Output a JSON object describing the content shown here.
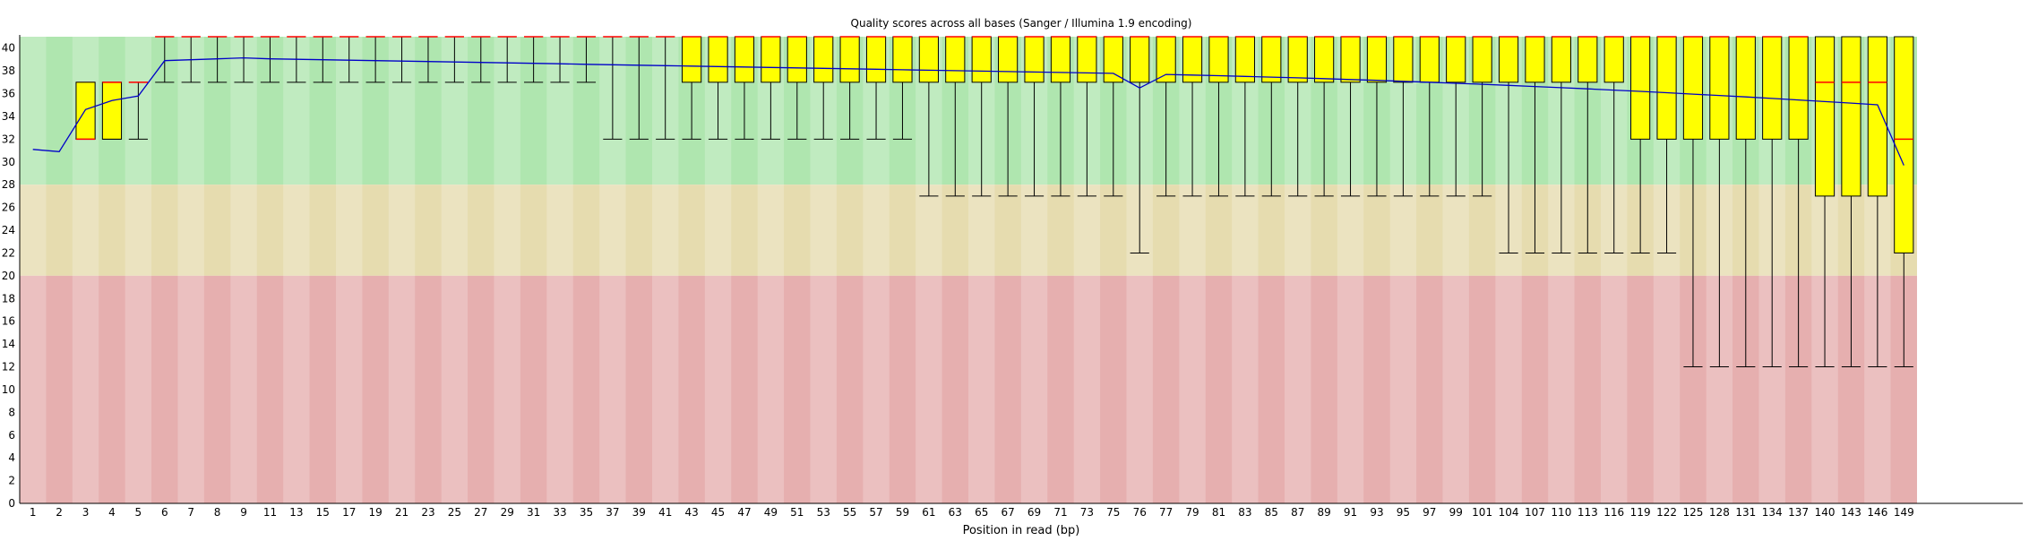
{
  "chart_data": {
    "type": "boxplot",
    "title": "Quality scores across all bases (Sanger / Illumina 1.9 encoding)",
    "xlabel": "Position in read (bp)",
    "ylabel": "",
    "ylim": [
      0,
      41
    ],
    "y_ticks": [
      0,
      2,
      4,
      6,
      8,
      10,
      12,
      14,
      16,
      18,
      20,
      22,
      24,
      26,
      28,
      30,
      32,
      34,
      36,
      38,
      40
    ],
    "x_ticks": [
      "1",
      "2",
      "3",
      "4",
      "5",
      "6",
      "7",
      "8",
      "9",
      "11",
      "13",
      "15",
      "17",
      "19",
      "21",
      "23",
      "25",
      "27",
      "29",
      "31",
      "33",
      "35",
      "37",
      "39",
      "41",
      "43",
      "45",
      "47",
      "49",
      "51",
      "53",
      "55",
      "57",
      "59",
      "61",
      "63",
      "65",
      "67",
      "69",
      "71",
      "73",
      "75",
      "76",
      "77",
      "79",
      "81",
      "83",
      "85",
      "87",
      "89",
      "91",
      "93",
      "95",
      "97",
      "99",
      "101",
      "104",
      "107",
      "110",
      "113",
      "116",
      "119",
      "122",
      "125",
      "128",
      "131",
      "134",
      "137",
      "140",
      "143",
      "146",
      "149"
    ],
    "zones": [
      {
        "from": 28,
        "to": 41,
        "color": "#afe6af"
      },
      {
        "from": 20,
        "to": 28,
        "color": "#e6dcaf"
      },
      {
        "from": 0,
        "to": 20,
        "color": "#e6afaf"
      }
    ],
    "grid": false,
    "legend": "none",
    "box_color": "#ffff00",
    "median_color": "#ff0000",
    "mean_line_color": "#0000c8"
  }
}
